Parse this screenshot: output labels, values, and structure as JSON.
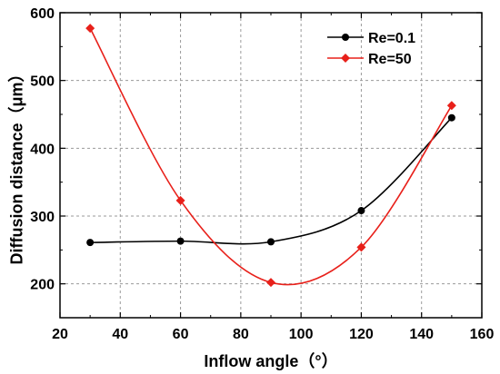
{
  "chart_data": {
    "type": "line",
    "xlabel": "Inflow angle（°）",
    "ylabel": "Diffusion distance（μm）",
    "xlim": [
      20,
      160
    ],
    "ylim": [
      150,
      600
    ],
    "xticks": [
      20,
      40,
      60,
      80,
      100,
      120,
      140,
      160
    ],
    "yticks": [
      200,
      300,
      400,
      500,
      600
    ],
    "grid": true,
    "legend_position": "top-right",
    "series": [
      {
        "name": "Re=0.1",
        "color": "#000000",
        "marker": "circle",
        "x": [
          30,
          60,
          90,
          120,
          150
        ],
        "y": [
          261,
          263,
          262,
          308,
          445
        ]
      },
      {
        "name": "Re=50",
        "color": "#e8201a",
        "marker": "diamond",
        "x": [
          30,
          60,
          90,
          120,
          150
        ],
        "y": [
          577,
          323,
          202,
          254,
          463
        ]
      }
    ]
  }
}
